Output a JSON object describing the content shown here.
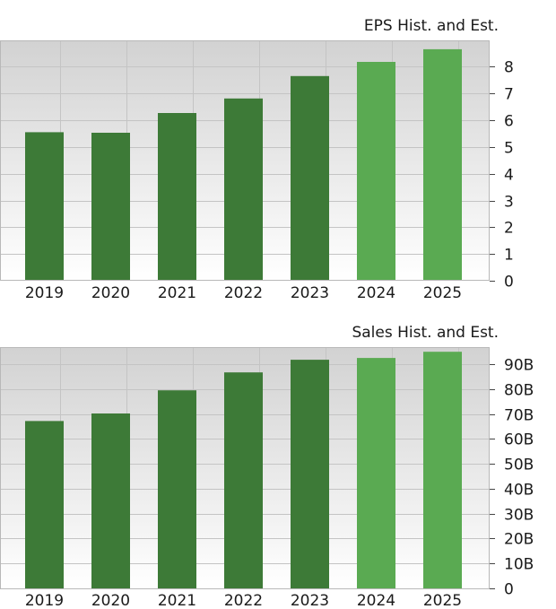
{
  "colors": {
    "historical": "#3d7a37",
    "estimate": "#5aaa52",
    "plot_bg_top": "#d2d2d2",
    "plot_bg_bottom": "#ffffff"
  },
  "chart_data": [
    {
      "type": "bar",
      "title": "EPS Hist. and Est.",
      "categories": [
        "2019",
        "2020",
        "2021",
        "2022",
        "2023",
        "2024",
        "2025"
      ],
      "values": [
        5.55,
        5.53,
        6.27,
        6.81,
        7.65,
        8.18,
        8.65
      ],
      "estimate_from_index": 5,
      "yticks": [
        "0",
        "1",
        "2",
        "3",
        "4",
        "5",
        "6",
        "7",
        "8"
      ],
      "ylim": [
        0,
        8.95
      ],
      "grid": true,
      "yaxis_position": "right"
    },
    {
      "type": "bar",
      "title": "Sales Hist. and Est.",
      "categories": [
        "2019",
        "2020",
        "2021",
        "2022",
        "2023",
        "2024",
        "2025"
      ],
      "values": [
        67.2,
        70.2,
        79.5,
        86.7,
        91.8,
        92.5,
        95.0
      ],
      "estimate_from_index": 5,
      "yticks": [
        "0",
        "10B",
        "20B",
        "30B",
        "40B",
        "50B",
        "60B",
        "70B",
        "80B",
        "90B"
      ],
      "ylim": [
        0,
        96.5
      ],
      "grid": true,
      "yaxis_position": "right"
    }
  ]
}
